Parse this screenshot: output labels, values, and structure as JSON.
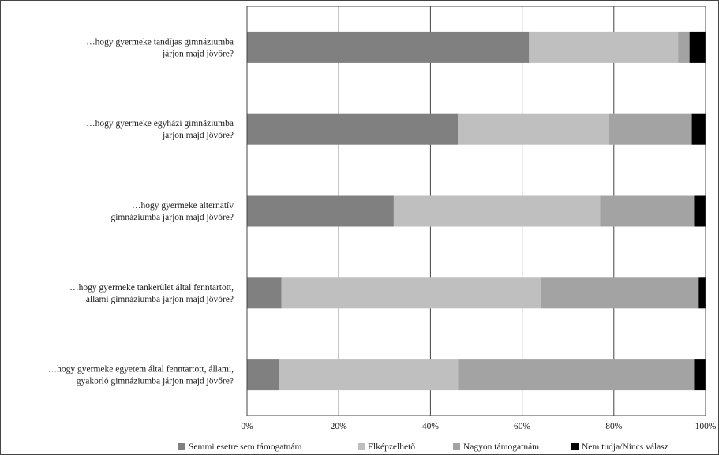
{
  "chart_data": {
    "type": "bar",
    "orientation": "horizontal",
    "stacked": "percent",
    "categories": [
      [
        "…hogy gyermeke tandíjas gimnáziumba",
        "járjon majd jövőre?"
      ],
      [
        "…hogy gyermeke egyházi gimnáziumba",
        "járjon majd jövőre?"
      ],
      [
        "…hogy gyermeke alternatív",
        "gimnáziumba járjon majd jövőre?"
      ],
      [
        "…hogy gyermeke tankerület által fenntartott,",
        "állami gimnáziumba járjon majd jövőre?"
      ],
      [
        "…hogy gyermeke egyetem által fenntartott, állami,",
        "gyakorló gimnáziumba járjon majd jövőre?"
      ]
    ],
    "series": [
      {
        "name": "Semmi esetre sem támogatnám",
        "color": "#808080",
        "values": [
          61.5,
          46,
          32,
          7.5,
          7
        ]
      },
      {
        "name": "Elképzelhető",
        "color": "#bfbfbf",
        "values": [
          32.5,
          33,
          45,
          56.5,
          39
        ]
      },
      {
        "name": "Nagyon támogatnám",
        "color": "#a3a3a3",
        "values": [
          2.5,
          18,
          20.5,
          34.5,
          51.5
        ]
      },
      {
        "name": "Nem tudja/Nincs válasz",
        "color": "#000000",
        "values": [
          3.5,
          3,
          2.5,
          1.5,
          2.5
        ]
      }
    ],
    "x_ticks": [
      "0%",
      "20%",
      "40%",
      "60%",
      "80%",
      "100%"
    ],
    "xlim": [
      0,
      100
    ],
    "grid": "vertical",
    "legend_position": "bottom"
  }
}
